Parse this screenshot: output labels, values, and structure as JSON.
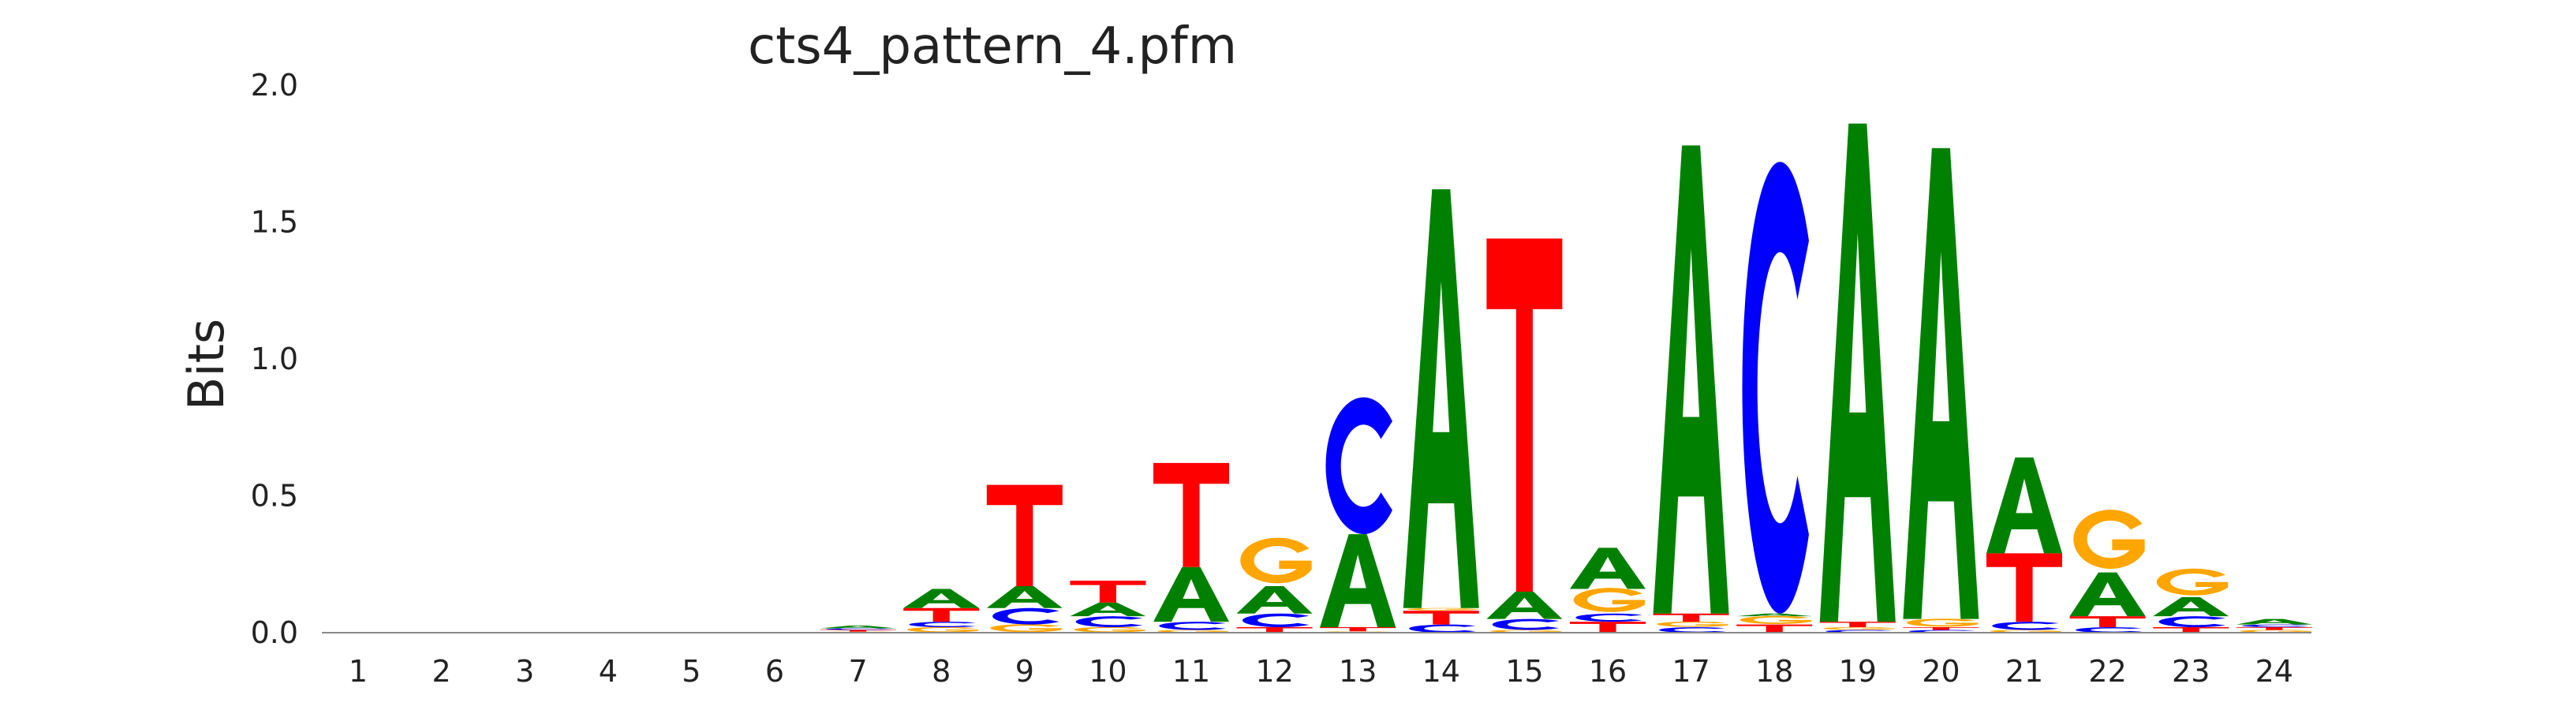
{
  "chart_data": {
    "type": "sequence-logo",
    "title": "cts4_pattern_4.pfm",
    "xlabel": "",
    "ylabel": "Bits",
    "ylim": [
      0,
      2.0
    ],
    "yticks": [
      "0.0",
      "0.5",
      "1.0",
      "1.5",
      "2.0"
    ],
    "positions": [
      "1",
      "2",
      "3",
      "4",
      "5",
      "6",
      "7",
      "8",
      "9",
      "10",
      "11",
      "12",
      "13",
      "14",
      "15",
      "16",
      "17",
      "18",
      "19",
      "20",
      "21",
      "22",
      "23",
      "24"
    ],
    "grid": false,
    "letter_colors": {
      "A": "#008000",
      "C": "#0000ff",
      "G": "#ffa500",
      "T": "#ff0000"
    },
    "columns": [
      {
        "position": "1",
        "letters": []
      },
      {
        "position": "2",
        "letters": []
      },
      {
        "position": "3",
        "letters": []
      },
      {
        "position": "4",
        "letters": []
      },
      {
        "position": "5",
        "letters": []
      },
      {
        "position": "6",
        "letters": []
      },
      {
        "position": "7",
        "letters": [
          {
            "base": "G",
            "height": 0.004
          },
          {
            "base": "T",
            "height": 0.006
          },
          {
            "base": "C",
            "height": 0.006
          },
          {
            "base": "A",
            "height": 0.01
          }
        ]
      },
      {
        "position": "8",
        "letters": [
          {
            "base": "G",
            "height": 0.02
          },
          {
            "base": "C",
            "height": 0.02
          },
          {
            "base": "T",
            "height": 0.05
          },
          {
            "base": "A",
            "height": 0.07
          }
        ]
      },
      {
        "position": "9",
        "letters": [
          {
            "base": "G",
            "height": 0.03
          },
          {
            "base": "C",
            "height": 0.06
          },
          {
            "base": "A",
            "height": 0.08
          },
          {
            "base": "T",
            "height": 0.37
          }
        ]
      },
      {
        "position": "10",
        "letters": [
          {
            "base": "G",
            "height": 0.02
          },
          {
            "base": "C",
            "height": 0.04
          },
          {
            "base": "A",
            "height": 0.05
          },
          {
            "base": "T",
            "height": 0.08
          }
        ]
      },
      {
        "position": "11",
        "letters": [
          {
            "base": "G",
            "height": 0.01
          },
          {
            "base": "C",
            "height": 0.03
          },
          {
            "base": "A",
            "height": 0.2
          },
          {
            "base": "T",
            "height": 0.38
          }
        ]
      },
      {
        "position": "12",
        "letters": [
          {
            "base": "T",
            "height": 0.02
          },
          {
            "base": "C",
            "height": 0.05
          },
          {
            "base": "A",
            "height": 0.1
          },
          {
            "base": "G",
            "height": 0.17
          }
        ]
      },
      {
        "position": "13",
        "letters": [
          {
            "base": "G",
            "height": 0.005
          },
          {
            "base": "T",
            "height": 0.015
          },
          {
            "base": "A",
            "height": 0.34
          },
          {
            "base": "C",
            "height": 0.5
          }
        ]
      },
      {
        "position": "14",
        "letters": [
          {
            "base": "C",
            "height": 0.03
          },
          {
            "base": "T",
            "height": 0.05
          },
          {
            "base": "G",
            "height": 0.01
          },
          {
            "base": "A",
            "height": 1.53
          }
        ]
      },
      {
        "position": "15",
        "letters": [
          {
            "base": "G",
            "height": 0.01
          },
          {
            "base": "C",
            "height": 0.04
          },
          {
            "base": "A",
            "height": 0.1
          },
          {
            "base": "T",
            "height": 1.29
          }
        ]
      },
      {
        "position": "16",
        "letters": [
          {
            "base": "T",
            "height": 0.04
          },
          {
            "base": "C",
            "height": 0.03
          },
          {
            "base": "G",
            "height": 0.09
          },
          {
            "base": "A",
            "height": 0.15
          }
        ]
      },
      {
        "position": "17",
        "letters": [
          {
            "base": "C",
            "height": 0.02
          },
          {
            "base": "G",
            "height": 0.02
          },
          {
            "base": "T",
            "height": 0.03
          },
          {
            "base": "A",
            "height": 1.71
          }
        ]
      },
      {
        "position": "18",
        "letters": [
          {
            "base": "T",
            "height": 0.03
          },
          {
            "base": "G",
            "height": 0.03
          },
          {
            "base": "A",
            "height": 0.01
          },
          {
            "base": "C",
            "height": 1.65
          }
        ]
      },
      {
        "position": "19",
        "letters": [
          {
            "base": "C",
            "height": 0.01
          },
          {
            "base": "G",
            "height": 0.01
          },
          {
            "base": "T",
            "height": 0.02
          },
          {
            "base": "A",
            "height": 1.82
          }
        ]
      },
      {
        "position": "20",
        "letters": [
          {
            "base": "C",
            "height": 0.01
          },
          {
            "base": "T",
            "height": 0.01
          },
          {
            "base": "G",
            "height": 0.03
          },
          {
            "base": "A",
            "height": 1.72
          }
        ]
      },
      {
        "position": "21",
        "letters": [
          {
            "base": "G",
            "height": 0.01
          },
          {
            "base": "C",
            "height": 0.03
          },
          {
            "base": "T",
            "height": 0.25
          },
          {
            "base": "A",
            "height": 0.35
          }
        ]
      },
      {
        "position": "22",
        "letters": [
          {
            "base": "C",
            "height": 0.02
          },
          {
            "base": "T",
            "height": 0.04
          },
          {
            "base": "A",
            "height": 0.16
          },
          {
            "base": "G",
            "height": 0.22
          }
        ]
      },
      {
        "position": "23",
        "letters": [
          {
            "base": "T",
            "height": 0.02
          },
          {
            "base": "C",
            "height": 0.04
          },
          {
            "base": "A",
            "height": 0.07
          },
          {
            "base": "G",
            "height": 0.1
          }
        ]
      },
      {
        "position": "24",
        "letters": [
          {
            "base": "G",
            "height": 0.01
          },
          {
            "base": "T",
            "height": 0.01
          },
          {
            "base": "C",
            "height": 0.01
          },
          {
            "base": "A",
            "height": 0.02
          }
        ]
      }
    ]
  }
}
